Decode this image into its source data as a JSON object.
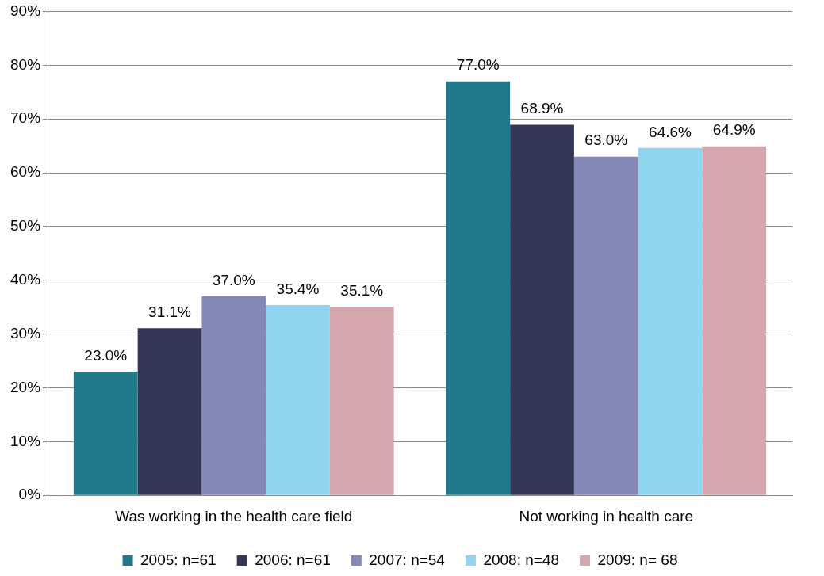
{
  "chart_data": {
    "type": "bar",
    "categories": [
      "Was working in the health care field",
      "Not working in health care"
    ],
    "series": [
      {
        "name": "2005: n=61",
        "color": "#217a8c",
        "values": [
          23.0,
          77.0
        ],
        "value_labels": [
          "23.0%",
          "77.0%"
        ]
      },
      {
        "name": "2006: n=61",
        "color": "#343657",
        "values": [
          31.1,
          68.9
        ],
        "value_labels": [
          "31.1%",
          "68.9%"
        ]
      },
      {
        "name": "2007: n=54",
        "color": "#8689b7",
        "values": [
          37.0,
          63.0
        ],
        "value_labels": [
          "37.0%",
          "63.0%"
        ]
      },
      {
        "name": "2008: n=48",
        "color": "#8fd5f0",
        "values": [
          35.4,
          64.6
        ],
        "value_labels": [
          "35.4%",
          "64.6%"
        ]
      },
      {
        "name": "2009: n= 68",
        "color": "#d5a6ae",
        "values": [
          35.1,
          64.9
        ],
        "value_labels": [
          "35.1%",
          "64.9%"
        ]
      }
    ],
    "ylim": [
      0,
      90
    ],
    "yticks": [
      {
        "value": 0,
        "label": "0%"
      },
      {
        "value": 10,
        "label": "10%"
      },
      {
        "value": 20,
        "label": "20%"
      },
      {
        "value": 30,
        "label": "30%"
      },
      {
        "value": 40,
        "label": "40%"
      },
      {
        "value": 50,
        "label": "50%"
      },
      {
        "value": 60,
        "label": "60%"
      },
      {
        "value": 70,
        "label": "70%"
      },
      {
        "value": 80,
        "label": "80%"
      },
      {
        "value": 90,
        "label": "90%"
      }
    ],
    "grid": "y",
    "legend": "bottom"
  }
}
